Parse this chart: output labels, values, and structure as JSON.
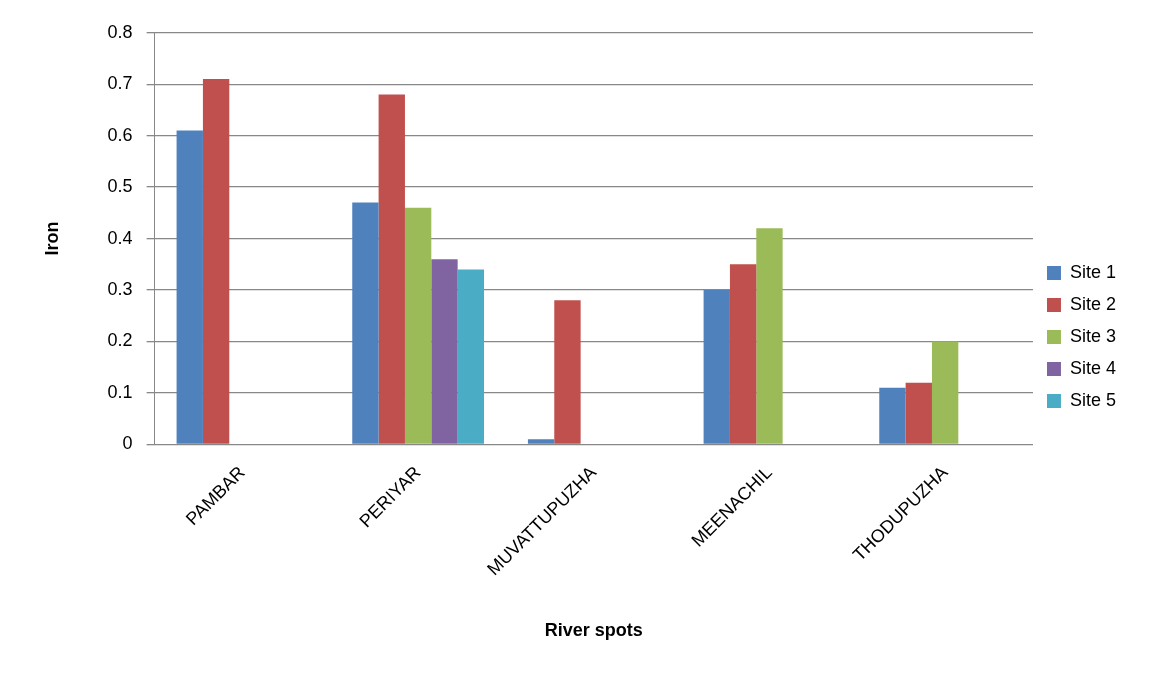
{
  "chart_data": {
    "type": "bar",
    "xlabel": "River spots",
    "ylabel": "Iron",
    "categories": [
      "PAMBAR",
      "PERIYAR",
      "MUVATTUPUZHA",
      "MEENACHIL",
      "THODUPUZHA"
    ],
    "series": [
      {
        "name": "Site 1",
        "color": "#4f81bd",
        "values": [
          0.61,
          0.47,
          0.01,
          0.3,
          0.11
        ]
      },
      {
        "name": "Site 2",
        "color": "#c0504d",
        "values": [
          0.71,
          0.68,
          0.28,
          0.35,
          0.12
        ]
      },
      {
        "name": "Site 3",
        "color": "#9bbb59",
        "values": [
          null,
          0.46,
          null,
          0.42,
          0.2
        ]
      },
      {
        "name": "Site 4",
        "color": "#8064a2",
        "values": [
          null,
          0.36,
          null,
          null,
          null
        ]
      },
      {
        "name": "Site 5",
        "color": "#4bacc6",
        "values": [
          null,
          0.34,
          null,
          null,
          null
        ]
      }
    ],
    "ylim": [
      0,
      0.8
    ],
    "yticks": [
      0,
      0.1,
      0.2,
      0.3,
      0.4,
      0.5,
      0.6,
      0.7,
      0.8
    ],
    "grid": "y",
    "legend": "right"
  }
}
